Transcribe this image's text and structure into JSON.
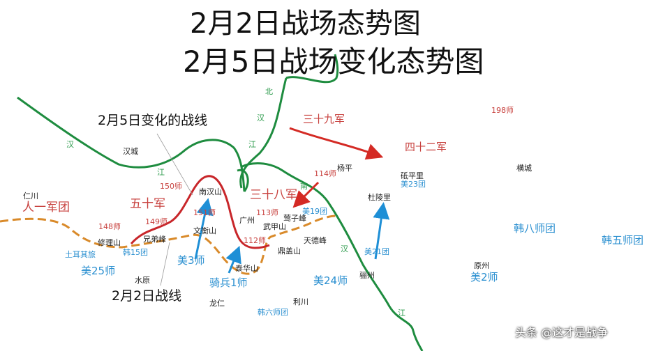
{
  "titles": {
    "line1": "2月2日战场态势图",
    "line2": "2月5日战场变化态势图"
  },
  "notes": {
    "front_feb5": "2月5日变化的战线",
    "front_feb2": "2月2日战线"
  },
  "rivers": {
    "bei": "北",
    "han1": "汉",
    "jiang1": "江",
    "han_west": "汉",
    "jiang_west": "江",
    "nan": "南",
    "han2": "汉",
    "jiang2": "江"
  },
  "places": {
    "seoul": "汉城",
    "renchuan": "仁川",
    "yangping": "杨平",
    "dipingli": "砥平里",
    "hengcheng": "横城",
    "dulingli": "杜陵里",
    "nanhanshan": "南汉山",
    "guangzhou": "广州",
    "wujiashan": "武甲山",
    "yingzifeng": "莺子峰",
    "tiandefeng": "天德峰",
    "dinggaishan": "鼎盖山",
    "taihuashan": "泰华山",
    "wenhengshan": "文衡山",
    "xiongdifeng": "兄弟峰",
    "xiulishan": "修理山",
    "shuiyuan": "水原",
    "longren": "龙仁",
    "lichuan": "利川",
    "lizhou": "骊州",
    "yuanzhou": "原州"
  },
  "cn_units": {
    "army39": "三十九军",
    "army42": "四十二军",
    "army38": "三十八军",
    "army50": "五十军",
    "group1": "人一军团",
    "div198": "198师",
    "div114": "114师",
    "div113": "113师",
    "div112": "112师",
    "div150": "150师",
    "div151": "151师",
    "div149": "149师",
    "div148": "148师"
  },
  "un_units": {
    "us23reg": "美23团",
    "us19reg": "美19团",
    "us21reg": "美21团",
    "rok8": "韩八师团",
    "rok5": "韩五师团",
    "us2div": "美2师",
    "us24div": "美24师",
    "cav1": "骑兵1师",
    "us3div": "美3师",
    "rok15reg": "韩15团",
    "turk": "土耳其旅",
    "us25div": "美25师",
    "rok6": "韩六师团"
  },
  "watermark": "头条 @这才是战争",
  "colors": {
    "river": "#1e8c3f",
    "cn": "#c8423f",
    "cn_front": "#c8262a",
    "un": "#2a8fd0",
    "feb2_front": "#d98a2a"
  }
}
